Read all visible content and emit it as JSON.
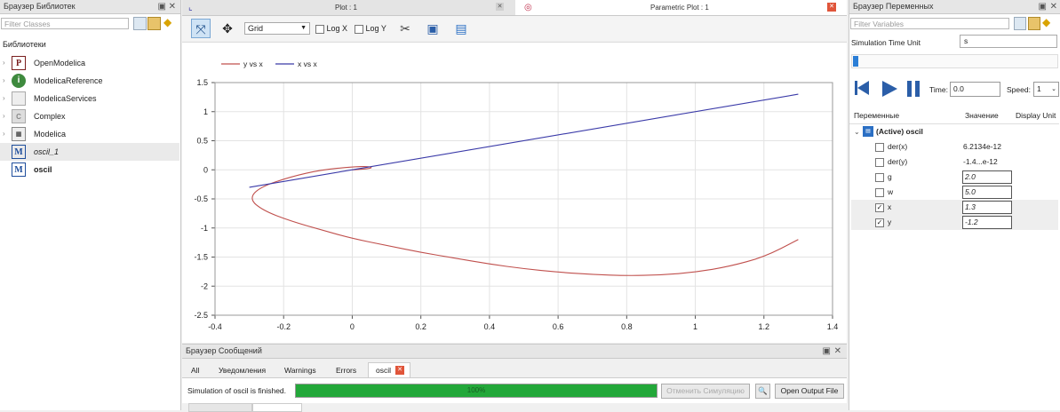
{
  "library_browser": {
    "title": "Браузер Библиотек",
    "filter_placeholder": "Filter Classes",
    "section_label": "Библиотеки",
    "items": [
      {
        "label": "OpenModelica",
        "icon": "P"
      },
      {
        "label": "ModelicaReference",
        "icon": "i"
      },
      {
        "label": "ModelicaServices",
        "icon": ""
      },
      {
        "label": "Complex",
        "icon": "C"
      },
      {
        "label": "Modelica",
        "icon": "M"
      },
      {
        "label": "oscil_1",
        "icon": "M"
      },
      {
        "label": "oscil",
        "icon": "M"
      }
    ]
  },
  "plot_tabs": {
    "plot1": "Plot : 1",
    "parametric": "Parametric Plot : 1"
  },
  "toolbar": {
    "grid_value": "Grid",
    "logx_label": "Log X",
    "logy_label": "Log Y"
  },
  "chart_data": {
    "type": "line",
    "title": "",
    "xlabel": "",
    "ylabel": "",
    "xlim": [
      -0.4,
      1.4
    ],
    "ylim": [
      -2.5,
      1.5
    ],
    "x_ticks": [
      "-0.4",
      "-0.2",
      "0",
      "0.2",
      "0.4",
      "0.6",
      "0.8",
      "1",
      "1.2",
      "1.4"
    ],
    "y_ticks": [
      "1.5",
      "1",
      "0.5",
      "0",
      "-0.5",
      "-1",
      "-1.5",
      "-2",
      "-2.5"
    ],
    "grid": true,
    "legend_position": "top-left",
    "series": [
      {
        "name": "y vs x",
        "color": "#c0504d",
        "x": [
          0.0,
          0.06,
          0.05,
          0.0,
          -0.09,
          -0.18,
          -0.27,
          -0.3,
          -0.26,
          -0.18,
          -0.08,
          0.0,
          0.1,
          0.2,
          0.3,
          0.4,
          0.5,
          0.6,
          0.7,
          0.8,
          0.9,
          1.0,
          1.1,
          1.2,
          1.3
        ],
        "y": [
          0.0,
          0.02,
          0.06,
          0.05,
          0.0,
          -0.12,
          -0.3,
          -0.5,
          -0.7,
          -0.88,
          -1.05,
          -1.18,
          -1.3,
          -1.42,
          -1.52,
          -1.62,
          -1.7,
          -1.76,
          -1.8,
          -1.82,
          -1.81,
          -1.76,
          -1.66,
          -1.5,
          -1.2
        ]
      },
      {
        "name": "x vs x",
        "color": "#3a3aa8",
        "x": [
          -0.3,
          1.3
        ],
        "y": [
          -0.3,
          1.3
        ]
      }
    ]
  },
  "messages": {
    "title": "Браузер Сообщений",
    "tabs": [
      "All",
      "Уведомления",
      "Warnings",
      "Errors",
      "oscil"
    ],
    "status_text": "Simulation of oscil is finished.",
    "progress_percent": 100,
    "progress_label": "100%",
    "cancel_label": "Отменить Симуляцию",
    "open_output_label": "Open Output File"
  },
  "variables_browser": {
    "title": "Браузер Переменных",
    "filter_placeholder": "Filter Variables",
    "time_unit_label": "Simulation Time Unit",
    "time_unit_value": "s",
    "time_label": "Time:",
    "time_value": "0.0",
    "speed_label": "Speed:",
    "speed_value": "1",
    "col_vars": "Переменные",
    "col_value": "Значение",
    "col_unit": "Display Unit",
    "model_label": "(Active) oscil",
    "rows": [
      {
        "name": "der(x)",
        "value": "6.2134e-12",
        "checked": false,
        "editable": false
      },
      {
        "name": "der(y)",
        "value": "-1.4...e-12",
        "checked": false,
        "editable": false
      },
      {
        "name": "g",
        "value": "2.0",
        "checked": false,
        "editable": true
      },
      {
        "name": "w",
        "value": "5.0",
        "checked": false,
        "editable": true
      },
      {
        "name": "x",
        "value": "1.3",
        "checked": true,
        "editable": true
      },
      {
        "name": "y",
        "value": "-1.2",
        "checked": true,
        "editable": true
      }
    ]
  }
}
